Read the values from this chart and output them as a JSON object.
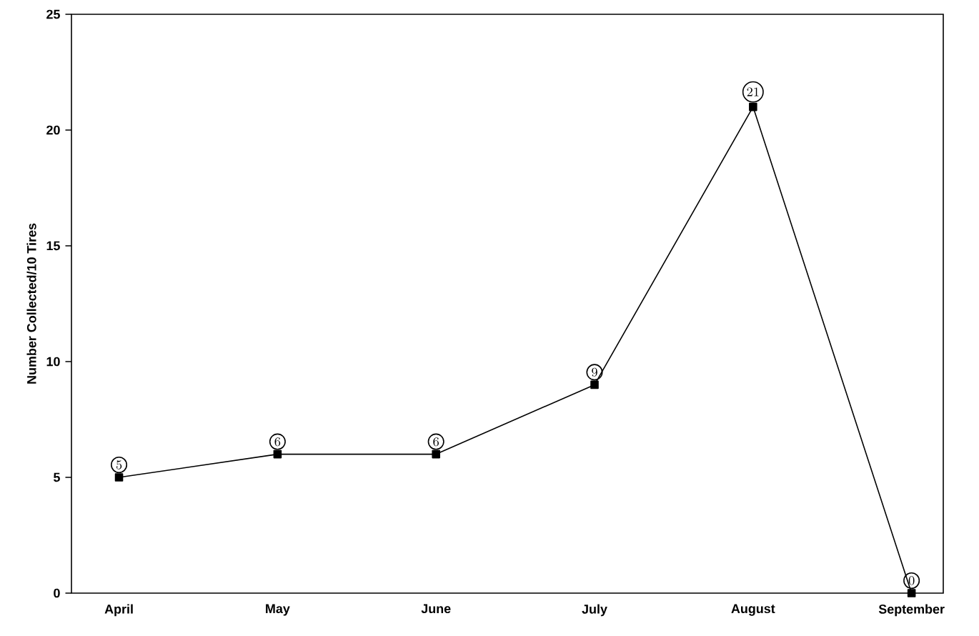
{
  "chart_data": {
    "type": "line",
    "ylabel": "Number Collected/10 Tires",
    "categories": [
      "April",
      "May",
      "June",
      "July",
      "August",
      "September"
    ],
    "values": [
      5,
      6,
      6,
      9,
      21,
      0
    ],
    "color": "#000000",
    "marker": "square",
    "line_style": "solid",
    "data_labels": true,
    "grid": false,
    "ylim": [
      0,
      25
    ],
    "yticks": [
      0,
      5,
      10,
      15,
      20,
      25
    ]
  }
}
